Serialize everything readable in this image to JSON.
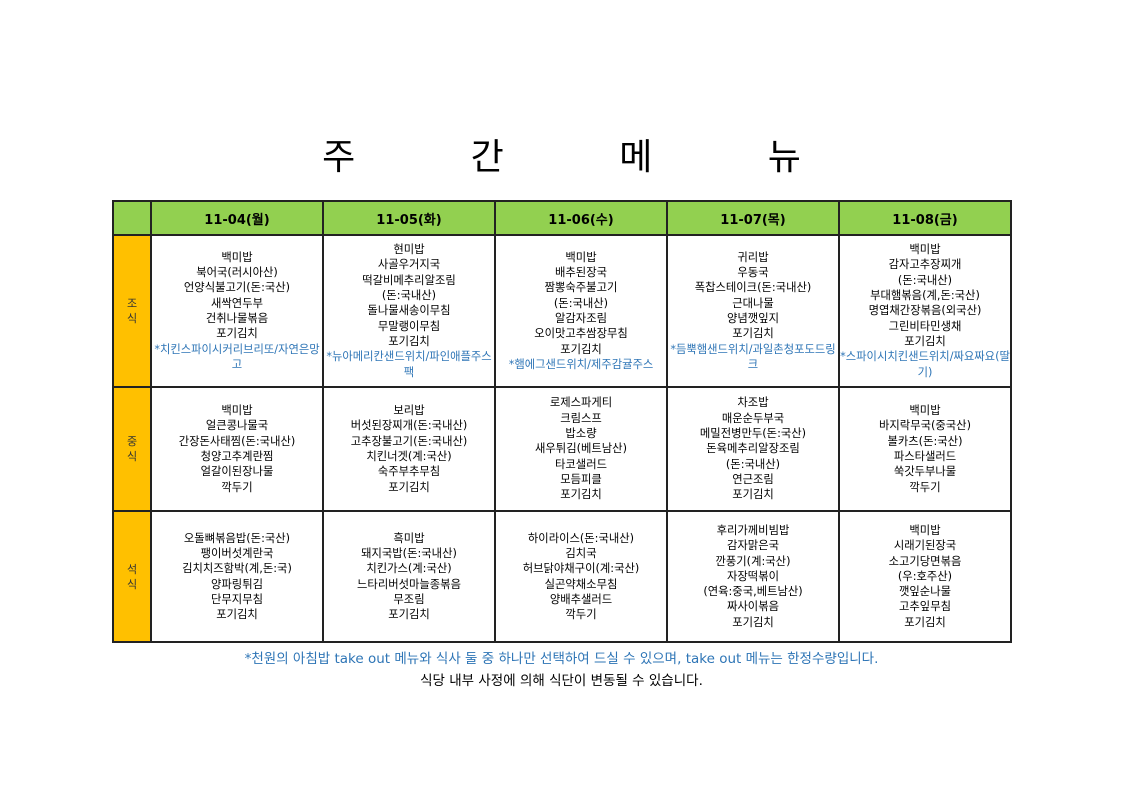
{
  "title": "주 간 메 뉴",
  "days": [
    "11-04(월)",
    "11-05(화)",
    "11-06(수)",
    "11-07(목)",
    "11-08(금)"
  ],
  "colors": {
    "header": "#92d050",
    "meal_label": "#ffc000",
    "note": "#2e75b6"
  },
  "meals": [
    {
      "label": [
        "조",
        "식"
      ],
      "cells": [
        {
          "items": [
            "백미밥",
            "북어국(러시아산)",
            "언양식불고기(돈:국산)",
            "새싹연두부",
            "건취나물볶음",
            "포기김치"
          ],
          "note": "*치킨스파이시커리브리또/자연은망고"
        },
        {
          "items": [
            "현미밥",
            "사골우거지국",
            "떡갈비메추리알조림",
            "(돈:국내산)",
            "돌나물새송이무침",
            "무말랭이무침",
            "포기김치"
          ],
          "note": "*뉴아메리칸샌드위치/파인애플주스팩"
        },
        {
          "items": [
            "백미밥",
            "배추된장국",
            "짬뽕숙주불고기",
            "(돈:국내산)",
            "알감자조림",
            "오이맛고추쌈장무침",
            "포기김치"
          ],
          "note": "*햄에그샌드위치/제주감귤주스"
        },
        {
          "items": [
            "귀리밥",
            "우동국",
            "폭찹스테이크(돈:국내산)",
            "근대나물",
            "양념깻잎지",
            "포기김치"
          ],
          "note": "*듬뿍햄샌드위치/과일촌청포도드링크"
        },
        {
          "items": [
            "백미밥",
            "감자고추장찌개",
            "(돈:국내산)",
            "부대햄볶음(계,돈:국산)",
            "명엽채간장볶음(외국산)",
            "그린비타민생채",
            "포기김치"
          ],
          "note": "*스파이시치킨샌드위치/짜요짜요(딸기)"
        }
      ]
    },
    {
      "label": [
        "중",
        "식"
      ],
      "cells": [
        {
          "items": [
            "백미밥",
            "얼큰콩나물국",
            "간장돈사태찜(돈:국내산)",
            "청양고추계란찜",
            "얼갈이된장나물",
            "깍두기"
          ]
        },
        {
          "items": [
            "보리밥",
            "버섯된장찌개(돈:국내산)",
            "고추장불고기(돈:국내산)",
            "치킨너겟(계:국산)",
            "숙주부추무침",
            "포기김치"
          ]
        },
        {
          "items": [
            "로제스파게티",
            "크림스프",
            "밥소량",
            "새우튀김(베트남산)",
            "타코샐러드",
            "모듬피클",
            "포기김치"
          ]
        },
        {
          "items": [
            "차조밥",
            "매운순두부국",
            "메밀전병만두(돈:국산)",
            "돈육메추리알장조림",
            "(돈:국내산)",
            "연근조림",
            "포기김치"
          ]
        },
        {
          "items": [
            "백미밥",
            "바지락무국(중국산)",
            "볼카츠(돈:국산)",
            "파스타샐러드",
            "쑥갓두부나물",
            "깍두기"
          ]
        }
      ]
    },
    {
      "label": [
        "석",
        "식"
      ],
      "cells": [
        {
          "items": [
            "오돌뼈볶음밥(돈:국산)",
            "팽이버섯계란국",
            "김치치즈함박(계,돈:국)",
            "양파링튀김",
            "단무지무침",
            "포기김치"
          ]
        },
        {
          "items": [
            "흑미밥",
            "돼지국밥(돈:국내산)",
            "치킨가스(계:국산)",
            "느타리버섯마늘종볶음",
            "무조림",
            "포기김치"
          ]
        },
        {
          "items": [
            "하이라이스(돈:국내산)",
            "김치국",
            "허브닭야채구이(계:국산)",
            "실곤약채소무침",
            "양배추샐러드",
            "깍두기"
          ]
        },
        {
          "items": [
            "후리가께비빔밥",
            "감자맑은국",
            "깐풍기(계:국산)",
            "자장떡볶이",
            "(연육:중국,베트남산)",
            "짜사이볶음",
            "포기김치"
          ]
        },
        {
          "items": [
            "백미밥",
            "시래기된장국",
            "소고기당면볶음",
            "(우:호주산)",
            "깻잎순나물",
            "고추잎무침",
            "포기김치"
          ]
        }
      ]
    }
  ],
  "footer": {
    "note": "*천원의 아침밥 take out 메뉴와 식사 둘 중 하나만 선택하여 드실 수 있으며, take out 메뉴는 한정수량입니다.",
    "notice": "식당 내부 사정에 의해 식단이 변동될 수 있습니다."
  }
}
